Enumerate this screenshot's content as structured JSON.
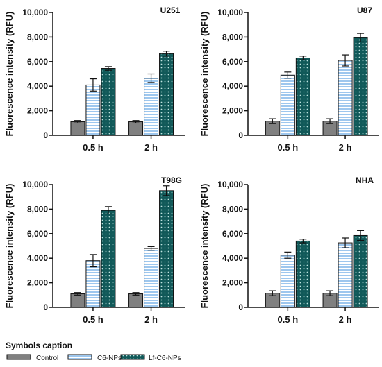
{
  "chart_data": [
    {
      "type": "bar",
      "title": "U251",
      "ylabel": "Fluorescence intensity (RFU)",
      "categories": [
        "0.5 h",
        "2 h"
      ],
      "ylim": [
        0,
        10000
      ],
      "yticks": [
        "0",
        "2,000",
        "4,000",
        "6,000",
        "8,000",
        "10,000"
      ],
      "series": [
        {
          "name": "Control",
          "values": [
            1100,
            1100
          ],
          "errors": [
            100,
            100
          ]
        },
        {
          "name": "C6-NPs",
          "values": [
            4100,
            4650
          ],
          "errors": [
            500,
            350
          ]
        },
        {
          "name": "Lf-C6-NPs",
          "values": [
            5450,
            6650
          ],
          "errors": [
            150,
            200
          ]
        }
      ]
    },
    {
      "type": "bar",
      "title": "U87",
      "ylabel": "Fluorescence intensity (RFU)",
      "categories": [
        "0.5 h",
        "2 h"
      ],
      "ylim": [
        0,
        10000
      ],
      "yticks": [
        "0",
        "2,000",
        "4,000",
        "6,000",
        "8,000",
        "10,000"
      ],
      "series": [
        {
          "name": "Control",
          "values": [
            1150,
            1150
          ],
          "errors": [
            200,
            200
          ]
        },
        {
          "name": "C6-NPs",
          "values": [
            4900,
            6100
          ],
          "errors": [
            250,
            450
          ]
        },
        {
          "name": "Lf-C6-NPs",
          "values": [
            6300,
            7950
          ],
          "errors": [
            150,
            350
          ]
        }
      ]
    },
    {
      "type": "bar",
      "title": "T98G",
      "ylabel": "Fluorescence intensity (RFU)",
      "categories": [
        "0.5 h",
        "2 h"
      ],
      "ylim": [
        0,
        10000
      ],
      "yticks": [
        "0",
        "2,000",
        "4,000",
        "6,000",
        "8,000",
        "10,000"
      ],
      "series": [
        {
          "name": "Control",
          "values": [
            1100,
            1100
          ],
          "errors": [
            100,
            100
          ]
        },
        {
          "name": "C6-NPs",
          "values": [
            3800,
            4800
          ],
          "errors": [
            500,
            150
          ]
        },
        {
          "name": "Lf-C6-NPs",
          "values": [
            7900,
            9500
          ],
          "errors": [
            300,
            400
          ]
        }
      ]
    },
    {
      "type": "bar",
      "title": "NHA",
      "ylabel": "Fluorescence intensity (RFU)",
      "categories": [
        "0.5 h",
        "2 h"
      ],
      "ylim": [
        0,
        10000
      ],
      "yticks": [
        "0",
        "2,000",
        "4,000",
        "6,000",
        "8,000",
        "10,000"
      ],
      "series": [
        {
          "name": "Control",
          "values": [
            1150,
            1150
          ],
          "errors": [
            200,
            200
          ]
        },
        {
          "name": "C6-NPs",
          "values": [
            4250,
            5250
          ],
          "errors": [
            250,
            400
          ]
        },
        {
          "name": "Lf-C6-NPs",
          "values": [
            5400,
            5850
          ],
          "errors": [
            150,
            400
          ]
        }
      ]
    }
  ],
  "legend": {
    "title": "Symbols caption",
    "items": [
      {
        "label": "Control",
        "style": "solid-gray"
      },
      {
        "label": "C6-NPs",
        "style": "blue-stripes"
      },
      {
        "label": "Lf-C6-NPs",
        "style": "teal-dots"
      }
    ]
  },
  "colors": {
    "control": "#808080",
    "c6_stripe": "#9ec7ee",
    "lf_fill": "#115959",
    "lf_dot": "#bfe4e0",
    "axis": "#111111"
  }
}
